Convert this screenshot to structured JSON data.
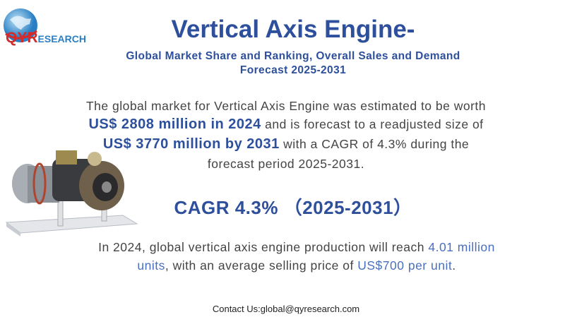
{
  "logo": {
    "text_q": "QY",
    "text_r": "R",
    "text_rest": "ESEARCH"
  },
  "header": {
    "title": "Vertical Axis Engine-",
    "subtitle_line1": "Global Market Share and Ranking, Overall Sales and Demand",
    "subtitle_line2": "Forecast 2025-2031"
  },
  "summary": {
    "l1": "The global market for Vertical Axis Engine was estimated to be worth",
    "l2_bold": "US$ 2808 million in 2024",
    "l2_rest": " and is forecast to a readjusted size of",
    "l3_bold": "US$ 3770 million by 2031",
    "l3_rest": " with a CAGR of 4.3% during the",
    "l4": "forecast period 2025-2031."
  },
  "cagr": "CAGR 4.3%  （2025-2031）",
  "production": {
    "p1": "In 2024, global vertical axis engine production will reach ",
    "p1_hl": "4.01 million",
    "p2_hl": "units",
    "p2": ", with an average selling price of ",
    "p2_hl2": "US$700 per unit",
    "p2_end": "."
  },
  "contact": "Contact Us:global@qyresearch.com",
  "colors": {
    "brand_blue": "#2d4f9c",
    "highlight_blue": "#4a6fc0",
    "logo_red": "#d42a2a"
  }
}
